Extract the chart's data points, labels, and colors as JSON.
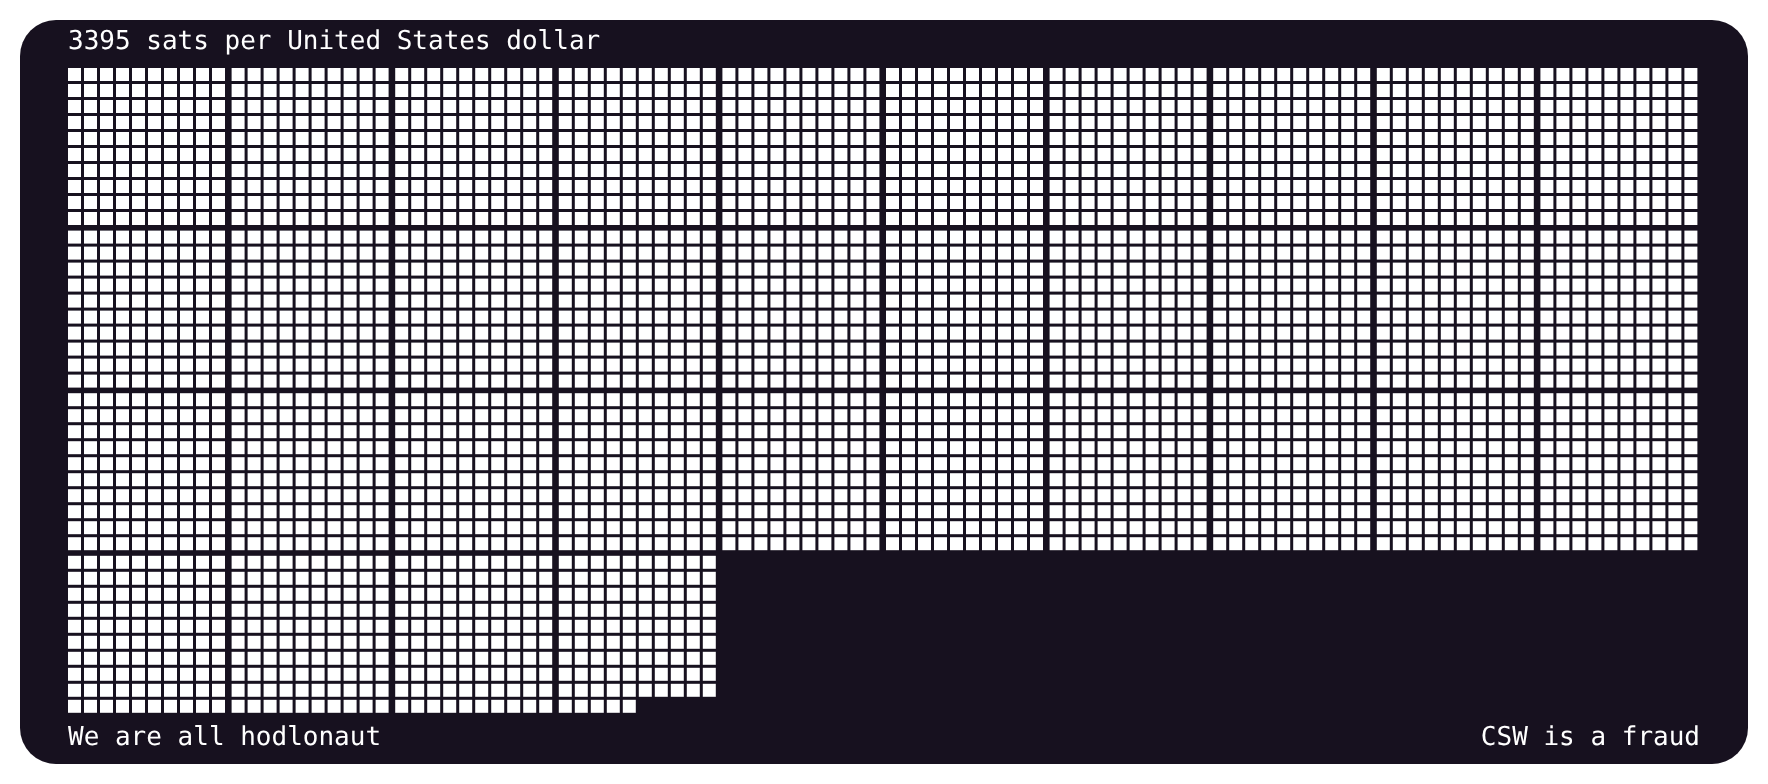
{
  "chart_data": {
    "type": "other",
    "title": "sats per United States dollar",
    "values": [
      3395
    ],
    "data_labels": true,
    "color": "#ffffff",
    "annotations": [
      "We are all hodlonaut",
      "CSW is a fraud"
    ]
  }
}
